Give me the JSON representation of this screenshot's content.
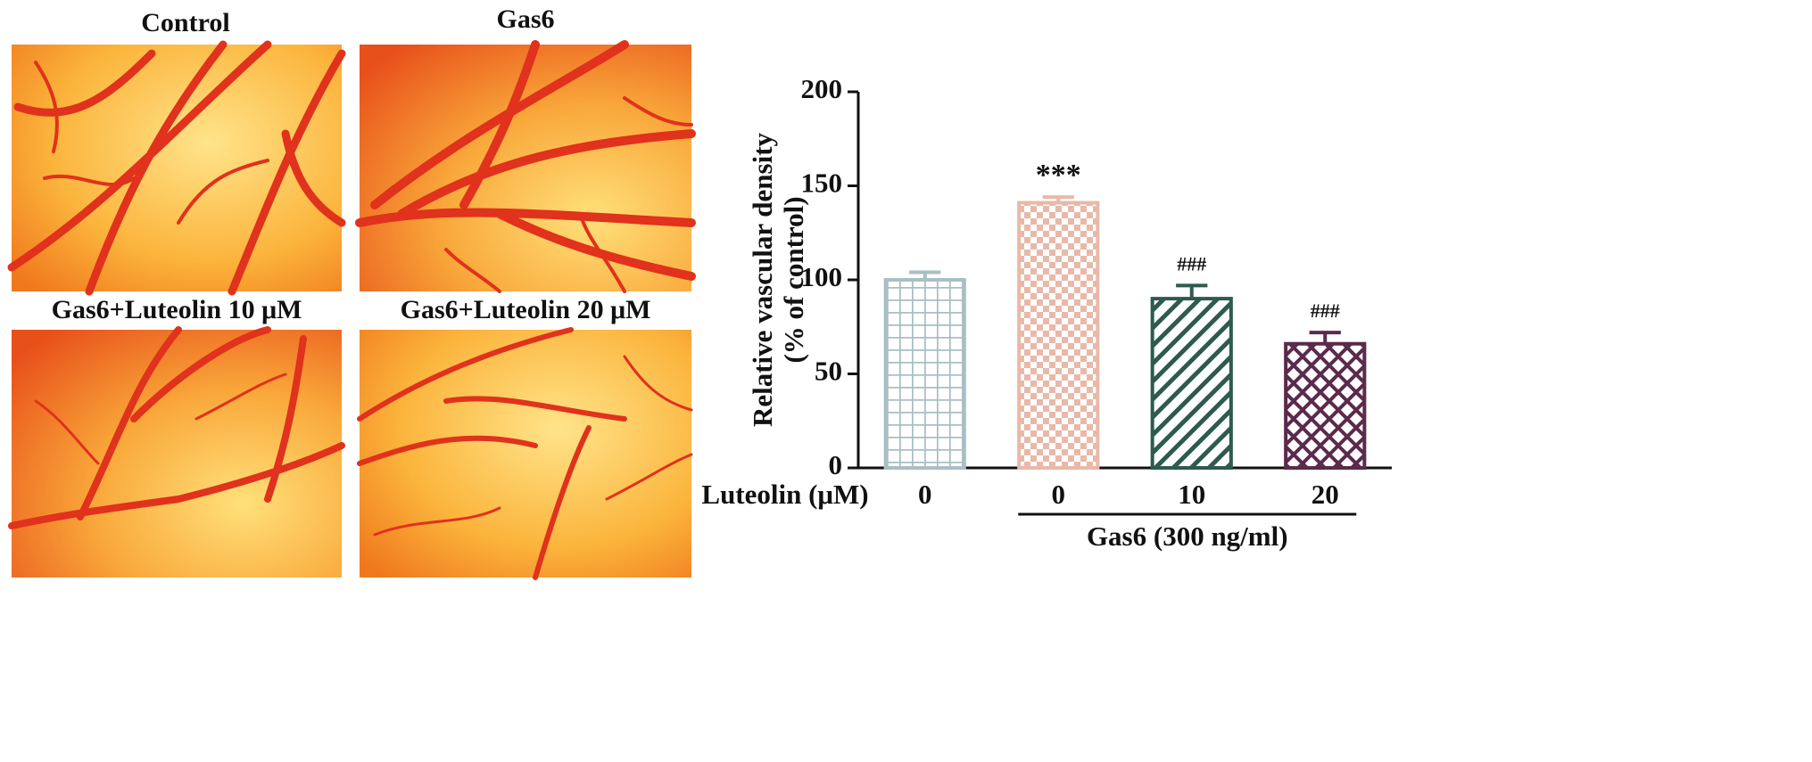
{
  "panels": [
    {
      "label": "Control"
    },
    {
      "label": "Gas6"
    },
    {
      "label": "Gas6+Luteolin 10 μM"
    },
    {
      "label": "Gas6+Luteolin 20 μM"
    }
  ],
  "chart_data": {
    "type": "bar",
    "ylabel": [
      "Relative vascular density",
      "(% of control)"
    ],
    "xlabel": "Luteolin (μM)",
    "group_label": "Gas6 (300 ng/ml)",
    "categories": [
      "0",
      "0",
      "10",
      "20"
    ],
    "values": [
      100,
      141,
      90,
      66
    ],
    "errors": [
      4,
      3,
      7,
      6
    ],
    "annotations": [
      null,
      "***",
      "###",
      "###"
    ],
    "colors": [
      "#a9bfc4",
      "#e8b9a9",
      "#2e5a4f",
      "#5b2a4c"
    ],
    "patterns": [
      "grid",
      "checker",
      "diagonal",
      "crosshatch"
    ],
    "ylim": [
      0,
      200
    ],
    "yticks": [
      0,
      50,
      100,
      150,
      200
    ]
  }
}
